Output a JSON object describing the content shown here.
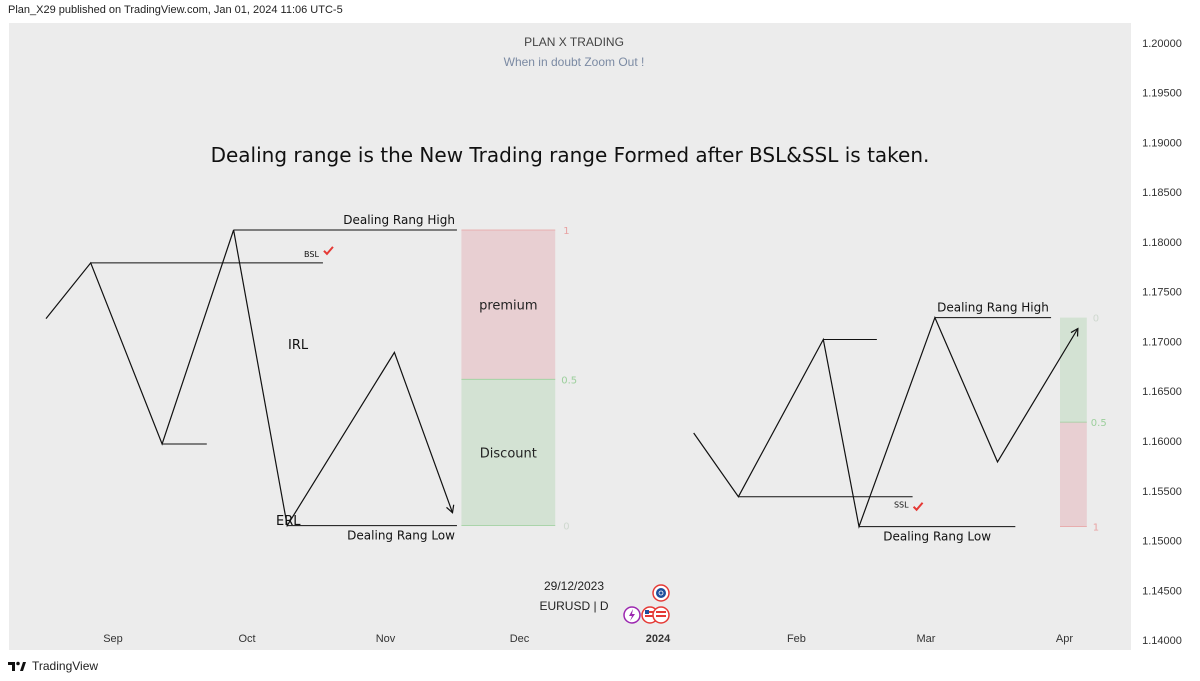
{
  "header": {
    "published": "Plan_X29 published on TradingView.com, Jan 01, 2024 11:06 UTC-5"
  },
  "footer": {
    "brand": "TradingView"
  },
  "chart": {
    "title": "PLAN X TRADING",
    "subtitle": "When in doubt Zoom Out !",
    "headline": "Dealing range is the New Trading range Formed after BSL&SSL is taken.",
    "symbol_date": "29/12/2023",
    "symbol": "EURUSD | D"
  },
  "colors": {
    "plot_bg": "#ececec",
    "premium_fill": "#e8cfd2",
    "discount_fill": "#d3e2d3",
    "premium_label": "#e8a2a2",
    "discount_label": "#9ccf9c",
    "check": "#e53935",
    "lightning": "#9c27b0"
  },
  "chart_data": {
    "type": "line",
    "x_axis_labels": [
      "Sep",
      "Oct",
      "Nov",
      "Dec",
      "2024",
      "Feb",
      "Mar",
      "Apr"
    ],
    "y_axis_labels": [
      "1.20000",
      "1.19500",
      "1.19000",
      "1.18500",
      "1.18000",
      "1.17500",
      "1.17000",
      "1.16500",
      "1.16000",
      "1.15500",
      "1.15000",
      "1.14500",
      "1.14000"
    ],
    "ylim": [
      1.139,
      1.202
    ],
    "left_example": {
      "zigzag": [
        [
          "2023-08-17",
          1.1723
        ],
        [
          "2023-08-27",
          1.1779
        ],
        [
          "2023-09-12",
          1.1597
        ],
        [
          "2023-09-28",
          1.1812
        ],
        [
          "2023-10-10",
          1.1515
        ],
        [
          "2023-11-03",
          1.1689
        ],
        [
          "2023-11-16",
          1.1528
        ]
      ],
      "level_lines": [
        {
          "x": [
            "2023-08-27",
            "2023-10-18"
          ],
          "y": 1.1779
        },
        {
          "x": [
            "2023-09-12",
            "2023-09-22"
          ],
          "y": 1.1597
        },
        {
          "x": [
            "2023-09-28",
            "2023-11-17"
          ],
          "y": 1.1812
        },
        {
          "x": [
            "2023-10-10",
            "2023-11-17"
          ],
          "y": 1.1515
        }
      ],
      "fib_box": {
        "x": [
          "2023-11-18",
          "2023-12-09"
        ],
        "premium": [
          1.1662,
          1.1812
        ],
        "discount": [
          1.1515,
          1.1662
        ],
        "level_1": "1",
        "level_mid": "0.5",
        "level_0": "0"
      },
      "labels": {
        "high": "Dealing Rang High",
        "low": "Dealing Rang Low",
        "bsl": "BSL",
        "irl": "IRL",
        "erl": "ERL",
        "premium": "premium",
        "discount": "Discount"
      }
    },
    "right_example": {
      "zigzag": [
        [
          "2024-01-09",
          1.1608
        ],
        [
          "2024-01-19",
          1.1544
        ],
        [
          "2024-02-07",
          1.1702
        ],
        [
          "2024-02-15",
          1.1514
        ],
        [
          "2024-03-03",
          1.1724
        ],
        [
          "2024-03-17",
          1.1579
        ],
        [
          "2024-04-04",
          1.1713
        ]
      ],
      "arrow_end": [
        "2024-04-04",
        1.1713
      ],
      "level_lines": [
        {
          "x": [
            "2024-01-19",
            "2024-02-27"
          ],
          "y": 1.1544
        },
        {
          "x": [
            "2024-02-07",
            "2024-02-19"
          ],
          "y": 1.1702
        },
        {
          "x": [
            "2024-03-03",
            "2024-03-29"
          ],
          "y": 1.1724
        },
        {
          "x": [
            "2024-02-15",
            "2024-03-21"
          ],
          "y": 1.1514
        }
      ],
      "fib_box": {
        "x": [
          "2024-03-31",
          "2024-04-06"
        ],
        "discount": [
          1.1619,
          1.1724
        ],
        "premium": [
          1.1514,
          1.1619
        ],
        "level_0": "0",
        "level_mid": "0.5",
        "level_1": "1"
      },
      "labels": {
        "high": "Dealing Rang High",
        "low": "Dealing Rang Low",
        "ssl": "SSL"
      }
    }
  }
}
